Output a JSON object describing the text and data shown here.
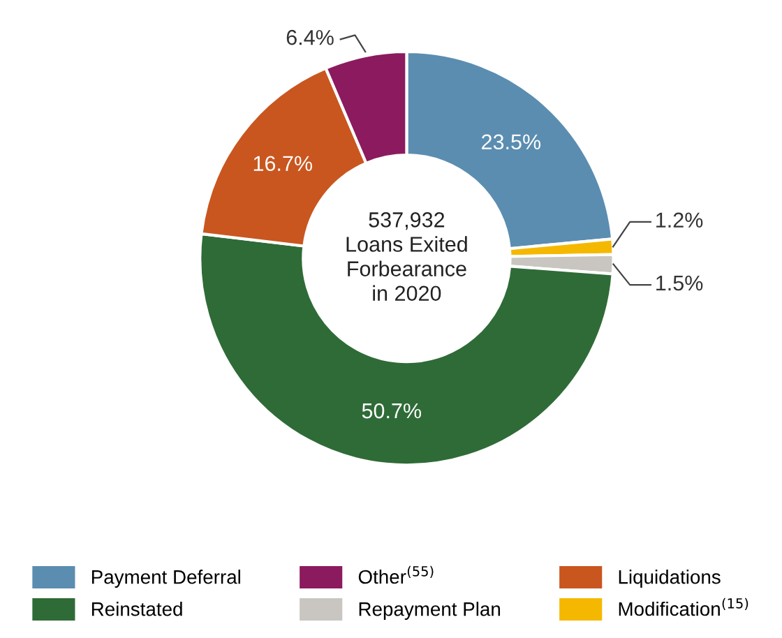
{
  "chart_data": {
    "type": "donut",
    "title": "537,932\nLoans Exited\nForbearance\nin 2020",
    "categories": [
      "Payment Deferral",
      "Modification$^{(15)}$",
      "Repayment Plan",
      "Reinstated",
      "Liquidations",
      "Other$^{(55)}$"
    ],
    "values": [
      23.5,
      1.2,
      1.5,
      50.7,
      16.7,
      6.4
    ],
    "colors": [
      "#5b8db1",
      "#f5b800",
      "#c9c6c1",
      "#2f6b37",
      "#c9561f",
      "#8c1a5f"
    ],
    "value_labels": [
      "23.5%",
      "1.2%",
      "1.5%",
      "50.7%",
      "16.7%",
      "6.4%"
    ],
    "legend": "bottom"
  }
}
